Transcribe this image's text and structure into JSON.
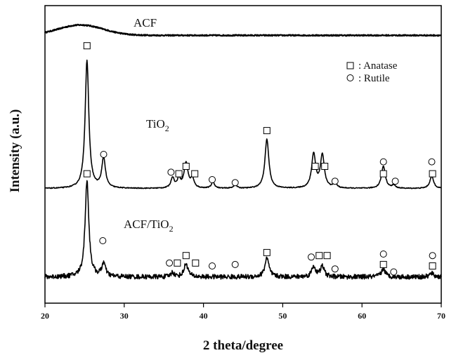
{
  "chart_data": {
    "type": "line",
    "xlabel": "2 theta/degree",
    "ylabel": "Intensity (a.u.)",
    "xlim": [
      20,
      70
    ],
    "xticks": [
      20,
      30,
      40,
      50,
      60,
      70
    ],
    "grid": false,
    "legend": {
      "placement": "top-right",
      "entries": [
        {
          "marker": "square",
          "label": ": Anatase"
        },
        {
          "marker": "circle",
          "label": ": Rutile"
        }
      ]
    },
    "series": [
      {
        "name": "ACF",
        "label": "ACF",
        "baseline": 0.9,
        "bumps": [
          {
            "x": 24.5,
            "height": 0.035,
            "width": 4.0
          }
        ],
        "noise": 0.002,
        "peaks": [],
        "anatase": [],
        "rutile": []
      },
      {
        "name": "TiO2",
        "label_main": "TiO",
        "label_sub": "2",
        "baseline": 0.385,
        "bumps": [],
        "noise": 0.0015,
        "peaks": [
          {
            "x": 25.3,
            "height": 0.43,
            "width": 0.28
          },
          {
            "x": 27.4,
            "height": 0.1,
            "width": 0.28
          },
          {
            "x": 36.1,
            "height": 0.035,
            "width": 0.25
          },
          {
            "x": 36.9,
            "height": 0.03,
            "width": 0.25
          },
          {
            "x": 37.8,
            "height": 0.085,
            "width": 0.3
          },
          {
            "x": 38.6,
            "height": 0.03,
            "width": 0.25
          },
          {
            "x": 41.2,
            "height": 0.02,
            "width": 0.25
          },
          {
            "x": 44.0,
            "height": 0.012,
            "width": 0.25
          },
          {
            "x": 48.0,
            "height": 0.165,
            "width": 0.3
          },
          {
            "x": 53.9,
            "height": 0.115,
            "width": 0.3
          },
          {
            "x": 55.0,
            "height": 0.11,
            "width": 0.3
          },
          {
            "x": 56.6,
            "height": 0.018,
            "width": 0.25
          },
          {
            "x": 62.7,
            "height": 0.075,
            "width": 0.3
          },
          {
            "x": 64.0,
            "height": 0.01,
            "width": 0.25
          },
          {
            "x": 68.8,
            "height": 0.04,
            "width": 0.3
          }
        ],
        "anatase": [
          {
            "x": 25.3,
            "y": 0.865
          },
          {
            "x": 36.9,
            "y": 0.435
          },
          {
            "x": 37.8,
            "y": 0.46
          },
          {
            "x": 38.9,
            "y": 0.435
          },
          {
            "x": 48.0,
            "y": 0.58
          },
          {
            "x": 54.1,
            "y": 0.46
          },
          {
            "x": 55.3,
            "y": 0.46
          },
          {
            "x": 62.7,
            "y": 0.435
          },
          {
            "x": 68.9,
            "y": 0.435
          }
        ],
        "rutile": [
          {
            "x": 27.4,
            "y": 0.5
          },
          {
            "x": 35.9,
            "y": 0.44
          },
          {
            "x": 41.1,
            "y": 0.415
          },
          {
            "x": 44.0,
            "y": 0.405
          },
          {
            "x": 56.6,
            "y": 0.41
          },
          {
            "x": 62.7,
            "y": 0.475
          },
          {
            "x": 64.2,
            "y": 0.41
          },
          {
            "x": 68.8,
            "y": 0.475
          }
        ]
      },
      {
        "name": "ACF/TiO2",
        "label_main": "ACF/TiO",
        "label_sub": "2",
        "baseline": 0.088,
        "bumps": [],
        "noise": 0.008,
        "peaks": [
          {
            "x": 25.3,
            "height": 0.325,
            "width": 0.28
          },
          {
            "x": 27.4,
            "height": 0.045,
            "width": 0.28
          },
          {
            "x": 36.1,
            "height": 0.015,
            "width": 0.25
          },
          {
            "x": 37.8,
            "height": 0.045,
            "width": 0.3
          },
          {
            "x": 48.0,
            "height": 0.065,
            "width": 0.3
          },
          {
            "x": 53.9,
            "height": 0.035,
            "width": 0.3
          },
          {
            "x": 55.0,
            "height": 0.035,
            "width": 0.3
          },
          {
            "x": 62.7,
            "height": 0.028,
            "width": 0.3
          },
          {
            "x": 68.8,
            "height": 0.012,
            "width": 0.3
          }
        ],
        "anatase": [
          {
            "x": 25.3,
            "y": 0.435
          },
          {
            "x": 36.7,
            "y": 0.135
          },
          {
            "x": 37.8,
            "y": 0.16
          },
          {
            "x": 39.0,
            "y": 0.135
          },
          {
            "x": 48.0,
            "y": 0.17
          },
          {
            "x": 54.6,
            "y": 0.16
          },
          {
            "x": 55.6,
            "y": 0.16
          },
          {
            "x": 62.7,
            "y": 0.13
          },
          {
            "x": 68.9,
            "y": 0.125
          }
        ],
        "rutile": [
          {
            "x": 27.3,
            "y": 0.21
          },
          {
            "x": 35.7,
            "y": 0.135
          },
          {
            "x": 41.1,
            "y": 0.125
          },
          {
            "x": 44.0,
            "y": 0.13
          },
          {
            "x": 53.6,
            "y": 0.155
          },
          {
            "x": 56.6,
            "y": 0.115
          },
          {
            "x": 62.7,
            "y": 0.165
          },
          {
            "x": 64.0,
            "y": 0.105
          },
          {
            "x": 68.9,
            "y": 0.16
          }
        ]
      }
    ]
  }
}
